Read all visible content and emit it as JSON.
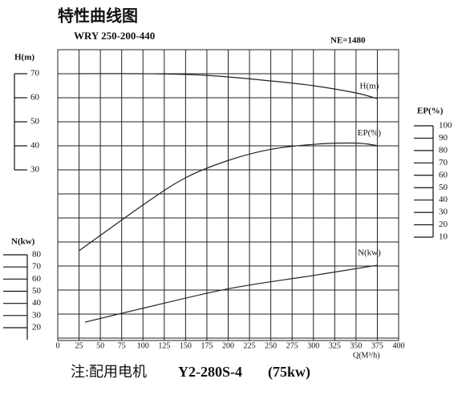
{
  "chart_data": {
    "type": "line",
    "title": "特性曲线图",
    "subtitle": "WRY 250-200-440",
    "annotation": "NE=1480",
    "xlabel": "Q(M³/h)",
    "xlim": [
      0,
      400
    ],
    "xticks": [
      0,
      25,
      50,
      75,
      100,
      125,
      150,
      175,
      200,
      225,
      250,
      275,
      300,
      325,
      350,
      375,
      400
    ],
    "ylabel": "H(m)",
    "ylim": [
      30,
      70
    ],
    "yticks": [
      30,
      40,
      50,
      60,
      70
    ],
    "y2label": "EP(%)",
    "y2lim": [
      10,
      100
    ],
    "y2ticks": [
      10,
      20,
      30,
      40,
      50,
      60,
      70,
      80,
      90,
      100
    ],
    "y3label": "N(kw)",
    "y3lim": [
      20,
      80
    ],
    "y3ticks": [
      20,
      30,
      40,
      50,
      60,
      70,
      80
    ],
    "series": [
      {
        "name": "H(m)",
        "axis": "y",
        "color": "#222",
        "x": [
          25,
          100,
          175,
          250,
          300,
          350,
          375
        ],
        "values": [
          70,
          70,
          69.3,
          67,
          65,
          62,
          59.6
        ]
      },
      {
        "name": "EP(%)",
        "axis": "y2",
        "color": "#222",
        "x": [
          25,
          100,
          150,
          200,
          250,
          300,
          350,
          375
        ],
        "values": [
          -1,
          36,
          58,
          72,
          81,
          85,
          86,
          84
        ]
      },
      {
        "name": "N(kw)",
        "axis": "y3",
        "color": "#222",
        "x": [
          32,
          100,
          200,
          300,
          375
        ],
        "values": [
          24.6,
          36,
          52,
          63,
          71.4
        ]
      }
    ],
    "footer": {
      "note": "注:配用电机",
      "motor": "Y2-280S-4",
      "power": "(75kw)"
    }
  }
}
